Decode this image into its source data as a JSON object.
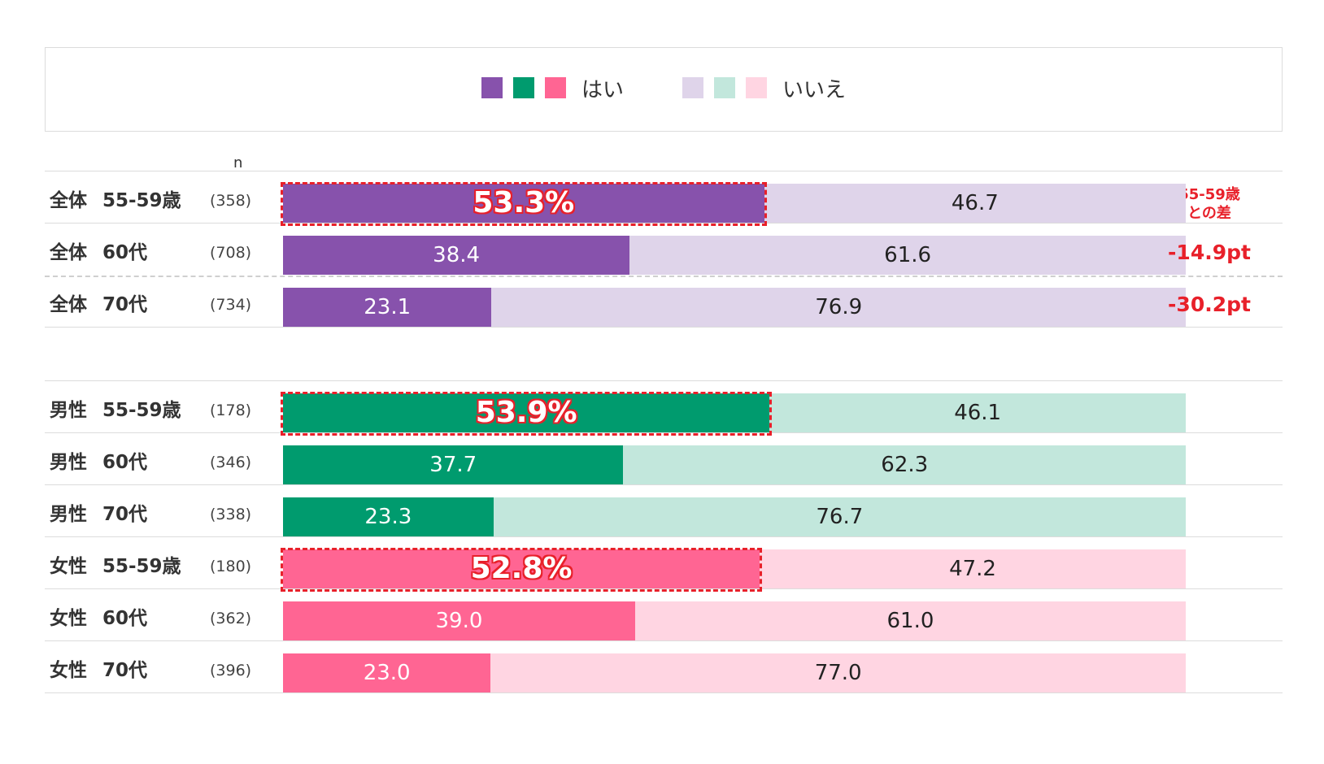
{
  "legend": {
    "yes_label": "はい",
    "no_label": "いいえ",
    "yes_colors": [
      "#8752ac",
      "#009b6e",
      "#ff6593"
    ],
    "no_colors": [
      "#dfd4ea",
      "#c2e7dc",
      "#ffd5e2"
    ]
  },
  "n_header": "n",
  "diff_header_line1": "55-59歳",
  "diff_header_line2": "との差",
  "chart_data": {
    "type": "bar",
    "orientation": "horizontal",
    "stacked": true,
    "percent_scale": [
      0,
      100
    ],
    "series_names": [
      "はい",
      "いいえ"
    ],
    "rows": [
      {
        "group": "全体",
        "age": "55-59歳",
        "n": "(358)",
        "yes": 53.3,
        "no": 46.7,
        "yes_text": "53.3%",
        "no_text": "46.7",
        "highlight": true,
        "diff": "",
        "color_set": 0
      },
      {
        "group": "全体",
        "age": "60代",
        "n": "(708)",
        "yes": 38.4,
        "no": 61.6,
        "yes_text": "38.4",
        "no_text": "61.6",
        "highlight": false,
        "diff": "-14.9pt",
        "color_set": 0
      },
      {
        "group": "全体",
        "age": "70代",
        "n": "(734)",
        "yes": 23.1,
        "no": 76.9,
        "yes_text": "23.1",
        "no_text": "76.9",
        "highlight": false,
        "diff": "-30.2pt",
        "color_set": 0
      },
      {
        "group": "男性",
        "age": "55-59歳",
        "n": "(178)",
        "yes": 53.9,
        "no": 46.1,
        "yes_text": "53.9%",
        "no_text": "46.1",
        "highlight": true,
        "diff": "",
        "color_set": 1
      },
      {
        "group": "男性",
        "age": "60代",
        "n": "(346)",
        "yes": 37.7,
        "no": 62.3,
        "yes_text": "37.7",
        "no_text": "62.3",
        "highlight": false,
        "diff": "",
        "color_set": 1
      },
      {
        "group": "男性",
        "age": "70代",
        "n": "(338)",
        "yes": 23.3,
        "no": 76.7,
        "yes_text": "23.3",
        "no_text": "76.7",
        "highlight": false,
        "diff": "",
        "color_set": 1
      },
      {
        "group": "女性",
        "age": "55-59歳",
        "n": "(180)",
        "yes": 52.8,
        "no": 47.2,
        "yes_text": "52.8%",
        "no_text": "47.2",
        "highlight": true,
        "diff": "",
        "color_set": 2
      },
      {
        "group": "女性",
        "age": "60代",
        "n": "(362)",
        "yes": 39.0,
        "no": 61.0,
        "yes_text": "39.0",
        "no_text": "61.0",
        "highlight": false,
        "diff": "",
        "color_set": 2
      },
      {
        "group": "女性",
        "age": "70代",
        "n": "(396)",
        "yes": 23.0,
        "no": 77.0,
        "yes_text": "23.0",
        "no_text": "77.0",
        "highlight": false,
        "diff": "",
        "color_set": 2
      }
    ]
  }
}
